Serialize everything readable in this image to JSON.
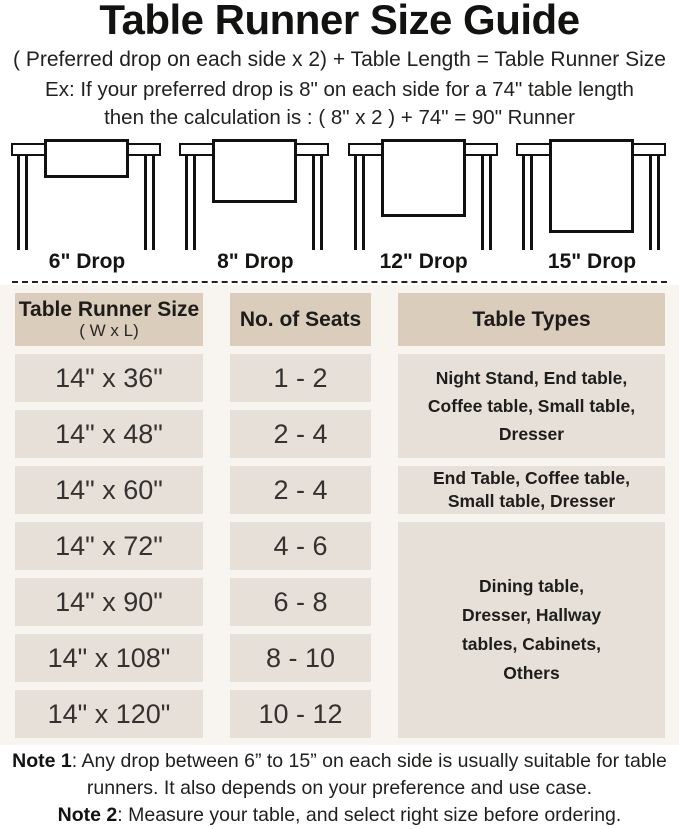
{
  "page": {
    "title": "Table Runner Size Guide",
    "formula": "( Preferred drop on each side x 2) + Table Length = Table Runner Size",
    "example_line1": "Ex: If your preferred drop is 8\" on each side for a 74\" table length",
    "example_line2": "then the calculation is : ( 8\" x 2 ) + 74\" = 90\" Runner"
  },
  "illustrations": [
    {
      "label": "6\" Drop",
      "drop_inches": 6
    },
    {
      "label": "8\" Drop",
      "drop_inches": 8
    },
    {
      "label": "12\" Drop",
      "drop_inches": 12
    },
    {
      "label": "15\" Drop",
      "drop_inches": 15
    }
  ],
  "size_table": {
    "headers": {
      "col1_title": "Table Runner Size",
      "col1_sub": "( W x L)",
      "col2": "No. of Seats",
      "col3": "Table Types"
    },
    "rows": [
      {
        "size": "14\" x 36\"",
        "seats": "1 - 2"
      },
      {
        "size": "14\" x 48\"",
        "seats": "2 - 4"
      },
      {
        "size": "14\" x 60\"",
        "seats": "2 - 4"
      },
      {
        "size": "14\" x 72\"",
        "seats": "4 - 6"
      },
      {
        "size": "14\" x 90\"",
        "seats": "6 - 8"
      },
      {
        "size": "14\" x 108\"",
        "seats": "8 - 10"
      },
      {
        "size": "14\" x 120\"",
        "seats": "10 - 12"
      }
    ],
    "type_groups": [
      {
        "rows": "1-2",
        "text": "Night Stand, End table, Coffee table, Small table, Dresser"
      },
      {
        "rows": "3",
        "text": "End Table, Coffee table, Small table, Dresser"
      },
      {
        "rows": "4-7",
        "text": "Dining table, Dresser, Hallway tables, Cabinets, Others"
      }
    ]
  },
  "notes": [
    {
      "label": "Note 1",
      "text": ": Any drop between 6” to 15” on each side is usually suitable for table runners. It also depends on your preference and use case."
    },
    {
      "label": "Note 2",
      "text": ": Measure your table, and select right size before ordering."
    }
  ],
  "colors": {
    "header_cell_bg": "#dacdbb",
    "body_cell_bg": "#e7e0d8",
    "section_bg": "#f8f4f0",
    "ink": "#1b1a18"
  },
  "chart_data": {
    "type": "table",
    "title": "Table Runner Size Guide",
    "columns": [
      "Table Runner Size ( W x L)",
      "No. of Seats",
      "Table Types"
    ],
    "rows": [
      [
        "14\" x 36\"",
        "1 - 2",
        "Night Stand, End table, Coffee table, Small table, Dresser"
      ],
      [
        "14\" x 48\"",
        "2 - 4",
        "Night Stand, End table, Coffee table, Small table, Dresser"
      ],
      [
        "14\" x 60\"",
        "2 - 4",
        "End Table, Coffee table, Small table, Dresser"
      ],
      [
        "14\" x 72\"",
        "4 - 6",
        "Dining table, Dresser, Hallway tables, Cabinets, Others"
      ],
      [
        "14\" x 90\"",
        "6 - 8",
        "Dining table, Dresser, Hallway tables, Cabinets, Others"
      ],
      [
        "14\" x 108\"",
        "8 - 10",
        "Dining table, Dresser, Hallway tables, Cabinets, Others"
      ],
      [
        "14\" x 120\"",
        "10 - 12",
        "Dining table, Dresser, Hallway tables, Cabinets, Others"
      ]
    ],
    "merged_cells": [
      {
        "column": "Table Types",
        "rows": "1-2"
      },
      {
        "column": "Table Types",
        "rows": "4-7"
      }
    ],
    "drop_options_inches": [
      6,
      8,
      12,
      15
    ]
  }
}
